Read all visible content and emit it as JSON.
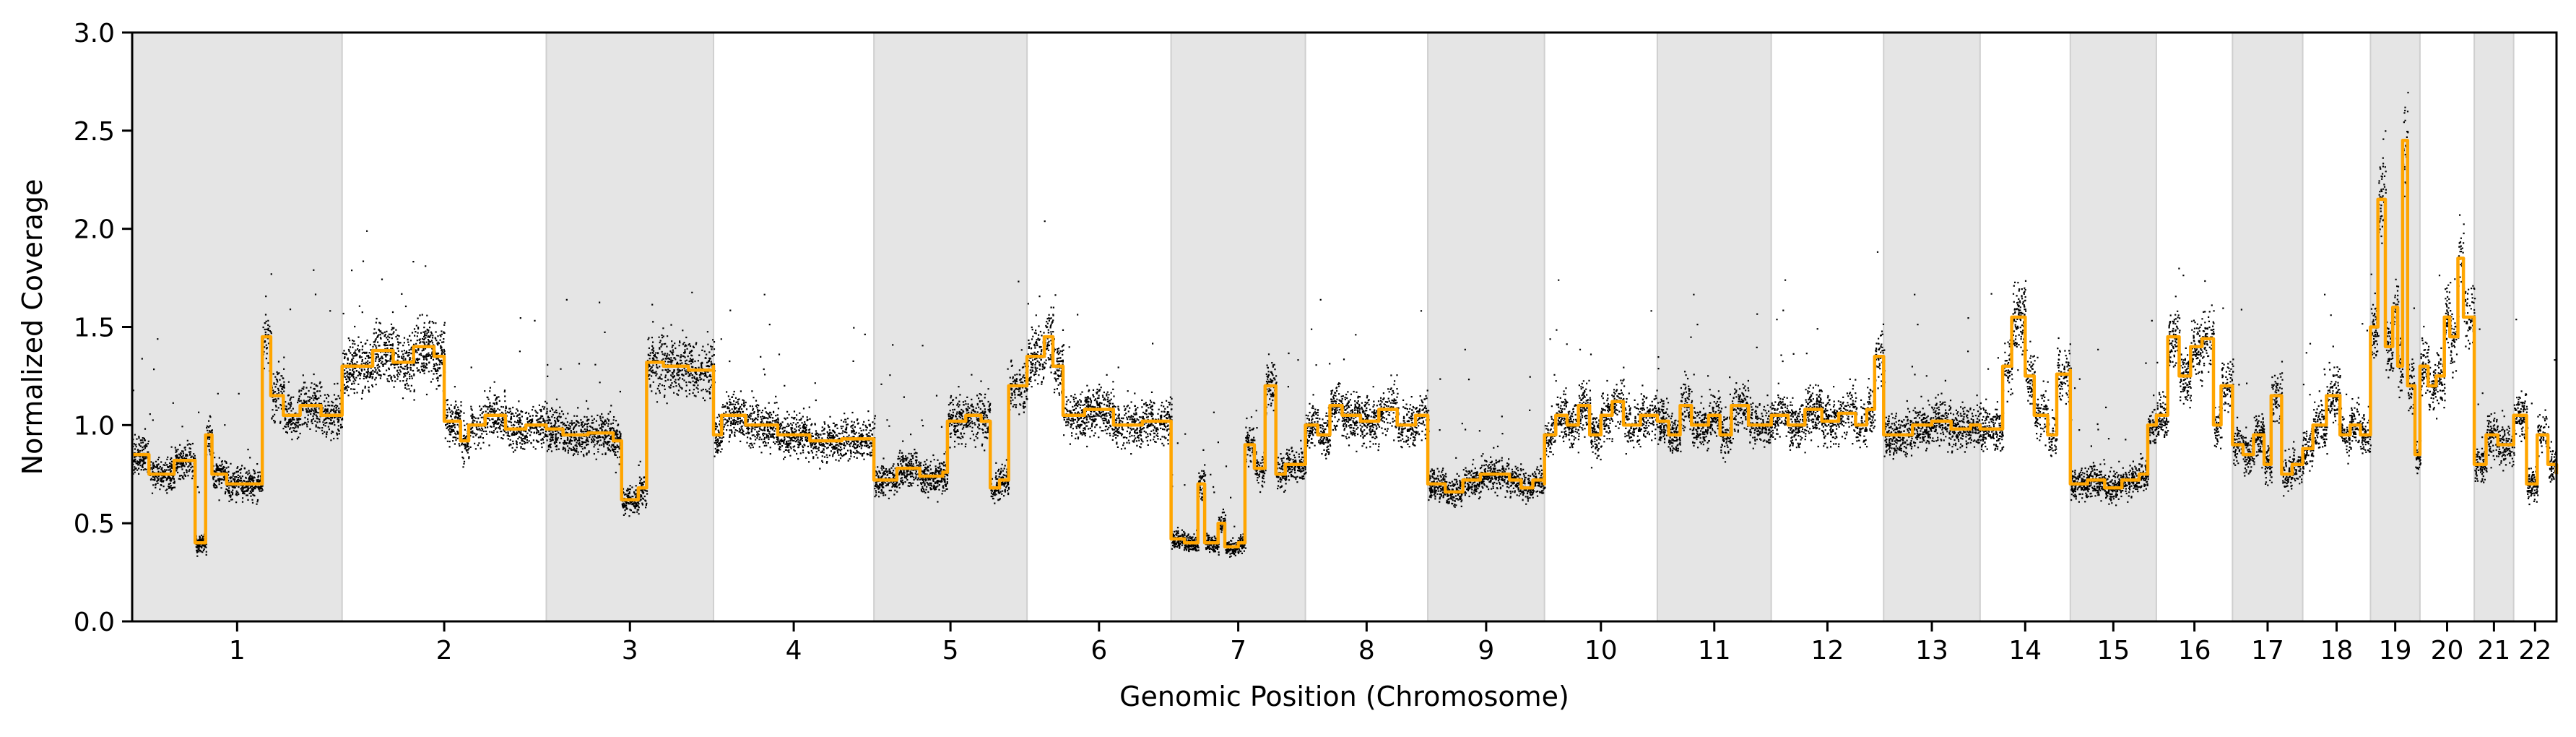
{
  "chart_data": {
    "type": "scatter",
    "title": "",
    "xlabel": "Genomic Position (Chromosome)",
    "ylabel": "Normalized Coverage",
    "ylim": [
      0,
      3.0
    ],
    "yticks": [
      "0.0",
      "0.5",
      "1.0",
      "1.5",
      "2.0",
      "2.5",
      "3.0"
    ],
    "grid": false,
    "legend": "none",
    "shaded_band_color": "#e5e5e5",
    "chromosomes": [
      {
        "label": "1",
        "span": 248.96,
        "baseline": 1.0,
        "shaded": true,
        "segments": [
          [
            0.0,
            0.85
          ],
          [
            0.08,
            0.75
          ],
          [
            0.2,
            0.82
          ],
          [
            0.3,
            0.4
          ],
          [
            0.35,
            0.95
          ],
          [
            0.38,
            0.75
          ],
          [
            0.45,
            0.7
          ],
          [
            0.6,
            0.7
          ],
          [
            0.62,
            1.45
          ],
          [
            0.66,
            1.15
          ],
          [
            0.72,
            1.05
          ],
          [
            0.8,
            1.1
          ],
          [
            0.9,
            1.05
          ],
          [
            1.0,
            1.05
          ]
        ]
      },
      {
        "label": "2",
        "span": 242.19,
        "baseline": 1.0,
        "shaded": false,
        "segments": [
          [
            0.0,
            1.3
          ],
          [
            0.15,
            1.38
          ],
          [
            0.25,
            1.32
          ],
          [
            0.35,
            1.4
          ],
          [
            0.45,
            1.35
          ],
          [
            0.5,
            1.02
          ],
          [
            0.58,
            0.92
          ],
          [
            0.62,
            1.0
          ],
          [
            0.7,
            1.05
          ],
          [
            0.8,
            0.98
          ],
          [
            0.9,
            1.0
          ],
          [
            1.0,
            1.0
          ]
        ]
      },
      {
        "label": "3",
        "span": 198.3,
        "baseline": 1.0,
        "shaded": true,
        "segments": [
          [
            0.0,
            0.98
          ],
          [
            0.1,
            0.95
          ],
          [
            0.25,
            0.96
          ],
          [
            0.4,
            0.92
          ],
          [
            0.45,
            0.62
          ],
          [
            0.55,
            0.68
          ],
          [
            0.6,
            1.32
          ],
          [
            0.7,
            1.3
          ],
          [
            0.85,
            1.28
          ],
          [
            1.0,
            1.3
          ]
        ]
      },
      {
        "label": "4",
        "span": 190.21,
        "baseline": 1.0,
        "shaded": false,
        "segments": [
          [
            0.0,
            0.95
          ],
          [
            0.05,
            1.05
          ],
          [
            0.2,
            1.0
          ],
          [
            0.4,
            0.95
          ],
          [
            0.6,
            0.92
          ],
          [
            0.8,
            0.93
          ],
          [
            1.0,
            0.92
          ]
        ]
      },
      {
        "label": "5",
        "span": 181.54,
        "baseline": 1.0,
        "shaded": true,
        "segments": [
          [
            0.0,
            0.72
          ],
          [
            0.15,
            0.78
          ],
          [
            0.3,
            0.74
          ],
          [
            0.45,
            0.76
          ],
          [
            0.48,
            1.02
          ],
          [
            0.6,
            1.05
          ],
          [
            0.7,
            1.02
          ],
          [
            0.76,
            0.68
          ],
          [
            0.82,
            0.72
          ],
          [
            0.88,
            1.2
          ],
          [
            1.0,
            1.25
          ]
        ]
      },
      {
        "label": "6",
        "span": 170.81,
        "baseline": 1.0,
        "shaded": false,
        "segments": [
          [
            0.0,
            1.35
          ],
          [
            0.12,
            1.45
          ],
          [
            0.18,
            1.3
          ],
          [
            0.25,
            1.05
          ],
          [
            0.4,
            1.08
          ],
          [
            0.6,
            1.0
          ],
          [
            0.8,
            1.02
          ],
          [
            1.0,
            1.0
          ]
        ]
      },
      {
        "label": "7",
        "span": 159.35,
        "baseline": 1.0,
        "shaded": true,
        "segments": [
          [
            0.0,
            0.42
          ],
          [
            0.1,
            0.4
          ],
          [
            0.2,
            0.7
          ],
          [
            0.25,
            0.4
          ],
          [
            0.35,
            0.5
          ],
          [
            0.4,
            0.38
          ],
          [
            0.5,
            0.4
          ],
          [
            0.55,
            0.9
          ],
          [
            0.62,
            0.78
          ],
          [
            0.7,
            1.2
          ],
          [
            0.78,
            0.75
          ],
          [
            0.85,
            0.8
          ],
          [
            1.0,
            0.82
          ]
        ]
      },
      {
        "label": "8",
        "span": 145.14,
        "baseline": 1.0,
        "shaded": false,
        "segments": [
          [
            0.0,
            1.0
          ],
          [
            0.1,
            0.95
          ],
          [
            0.2,
            1.1
          ],
          [
            0.3,
            1.05
          ],
          [
            0.45,
            1.02
          ],
          [
            0.6,
            1.08
          ],
          [
            0.75,
            1.0
          ],
          [
            0.9,
            1.05
          ],
          [
            1.0,
            1.0
          ]
        ]
      },
      {
        "label": "9",
        "span": 138.39,
        "baseline": 1.0,
        "shaded": true,
        "segments": [
          [
            0.0,
            0.7
          ],
          [
            0.15,
            0.66
          ],
          [
            0.3,
            0.72
          ],
          [
            0.45,
            0.75
          ],
          [
            0.6,
            0.75
          ],
          [
            0.7,
            0.72
          ],
          [
            0.8,
            0.68
          ],
          [
            0.9,
            0.72
          ],
          [
            1.0,
            0.7
          ]
        ]
      },
      {
        "label": "10",
        "span": 133.8,
        "baseline": 1.0,
        "shaded": false,
        "segments": [
          [
            0.0,
            0.95
          ],
          [
            0.1,
            1.05
          ],
          [
            0.2,
            1.0
          ],
          [
            0.3,
            1.1
          ],
          [
            0.4,
            0.95
          ],
          [
            0.5,
            1.05
          ],
          [
            0.6,
            1.12
          ],
          [
            0.7,
            1.0
          ],
          [
            0.85,
            1.05
          ],
          [
            1.0,
            1.02
          ]
        ]
      },
      {
        "label": "11",
        "span": 135.09,
        "baseline": 1.0,
        "shaded": true,
        "segments": [
          [
            0.0,
            1.02
          ],
          [
            0.1,
            0.95
          ],
          [
            0.2,
            1.1
          ],
          [
            0.3,
            1.0
          ],
          [
            0.45,
            1.05
          ],
          [
            0.55,
            0.95
          ],
          [
            0.65,
            1.1
          ],
          [
            0.8,
            1.0
          ],
          [
            1.0,
            1.02
          ]
        ]
      },
      {
        "label": "12",
        "span": 133.28,
        "baseline": 1.0,
        "shaded": false,
        "segments": [
          [
            0.0,
            1.05
          ],
          [
            0.15,
            1.0
          ],
          [
            0.3,
            1.08
          ],
          [
            0.45,
            1.02
          ],
          [
            0.6,
            1.06
          ],
          [
            0.75,
            1.0
          ],
          [
            0.85,
            1.08
          ],
          [
            0.92,
            1.35
          ],
          [
            1.0,
            1.02
          ]
        ]
      },
      {
        "label": "13",
        "span": 114.36,
        "baseline": 1.0,
        "shaded": true,
        "segments": [
          [
            0.0,
            0.95
          ],
          [
            0.15,
            0.95
          ],
          [
            0.3,
            1.0
          ],
          [
            0.5,
            1.02
          ],
          [
            0.7,
            0.98
          ],
          [
            0.9,
            1.0
          ],
          [
            1.0,
            0.98
          ]
        ]
      },
      {
        "label": "14",
        "span": 107.04,
        "baseline": 1.0,
        "shaded": false,
        "segments": [
          [
            0.0,
            0.98
          ],
          [
            0.18,
            0.98
          ],
          [
            0.25,
            1.3
          ],
          [
            0.35,
            1.55
          ],
          [
            0.5,
            1.25
          ],
          [
            0.6,
            1.05
          ],
          [
            0.75,
            0.95
          ],
          [
            0.85,
            1.26
          ],
          [
            1.0,
            1.28
          ]
        ]
      },
      {
        "label": "15",
        "span": 101.99,
        "baseline": 1.0,
        "shaded": true,
        "segments": [
          [
            0.0,
            0.7
          ],
          [
            0.2,
            0.72
          ],
          [
            0.4,
            0.68
          ],
          [
            0.6,
            0.72
          ],
          [
            0.8,
            0.75
          ],
          [
            0.9,
            1.0
          ],
          [
            1.0,
            1.05
          ]
        ]
      },
      {
        "label": "16",
        "span": 90.34,
        "baseline": 1.0,
        "shaded": false,
        "segments": [
          [
            0.0,
            1.05
          ],
          [
            0.15,
            1.45
          ],
          [
            0.3,
            1.25
          ],
          [
            0.45,
            1.4
          ],
          [
            0.6,
            1.44
          ],
          [
            0.75,
            1.0
          ],
          [
            0.85,
            1.2
          ],
          [
            1.0,
            1.0
          ]
        ]
      },
      {
        "label": "17",
        "span": 83.26,
        "baseline": 1.0,
        "shaded": true,
        "segments": [
          [
            0.0,
            0.9
          ],
          [
            0.15,
            0.85
          ],
          [
            0.3,
            0.95
          ],
          [
            0.45,
            0.8
          ],
          [
            0.55,
            1.15
          ],
          [
            0.7,
            0.75
          ],
          [
            0.85,
            0.8
          ],
          [
            1.0,
            0.85
          ]
        ]
      },
      {
        "label": "18",
        "span": 80.37,
        "baseline": 1.0,
        "shaded": false,
        "segments": [
          [
            0.0,
            0.88
          ],
          [
            0.15,
            1.0
          ],
          [
            0.35,
            1.15
          ],
          [
            0.55,
            0.95
          ],
          [
            0.7,
            1.0
          ],
          [
            0.85,
            0.95
          ],
          [
            1.0,
            1.0
          ]
        ]
      },
      {
        "label": "19",
        "span": 58.62,
        "baseline": 1.0,
        "shaded": true,
        "segments": [
          [
            0.0,
            1.5
          ],
          [
            0.15,
            2.15
          ],
          [
            0.3,
            1.4
          ],
          [
            0.45,
            1.6
          ],
          [
            0.55,
            1.3
          ],
          [
            0.65,
            2.45
          ],
          [
            0.75,
            1.2
          ],
          [
            0.9,
            0.85
          ],
          [
            1.0,
            0.9
          ]
        ]
      },
      {
        "label": "20",
        "span": 64.44,
        "baseline": 1.0,
        "shaded": false,
        "segments": [
          [
            0.0,
            1.3
          ],
          [
            0.15,
            1.2
          ],
          [
            0.3,
            1.25
          ],
          [
            0.45,
            1.55
          ],
          [
            0.55,
            1.45
          ],
          [
            0.7,
            1.85
          ],
          [
            0.8,
            1.55
          ],
          [
            1.0,
            1.5
          ]
        ]
      },
      {
        "label": "21",
        "span": 46.71,
        "baseline": 1.0,
        "shaded": true,
        "segments": [
          [
            0.0,
            0.8
          ],
          [
            0.3,
            0.95
          ],
          [
            0.6,
            0.9
          ],
          [
            1.0,
            1.05
          ]
        ]
      },
      {
        "label": "22",
        "span": 50.82,
        "baseline": 1.0,
        "shaded": false,
        "segments": [
          [
            0.0,
            1.05
          ],
          [
            0.3,
            0.7
          ],
          [
            0.55,
            0.95
          ],
          [
            0.8,
            0.8
          ],
          [
            1.0,
            0.75
          ]
        ]
      }
    ],
    "series": [
      {
        "marker": "point",
        "color": "#000000"
      },
      {
        "marker": "line",
        "color": "#FFA500"
      }
    ]
  }
}
